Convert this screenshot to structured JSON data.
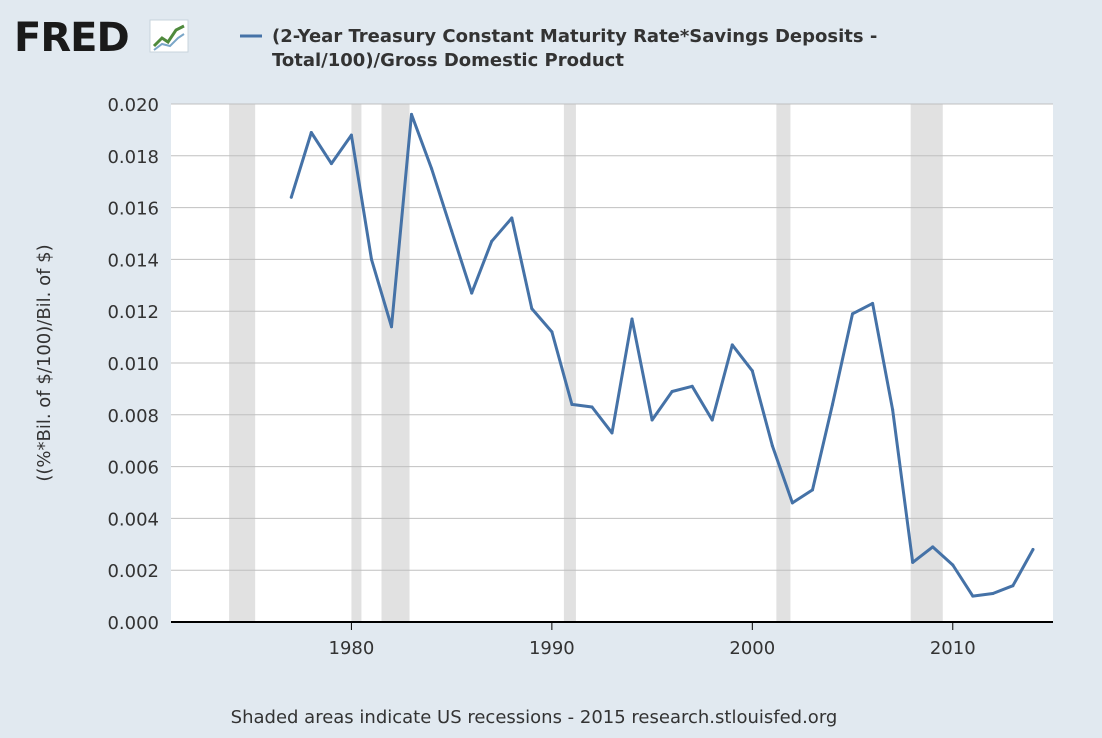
{
  "logo": {
    "text": "FRED"
  },
  "chart_data": {
    "type": "line",
    "title": "(2-Year Treasury Constant Maturity Rate*Savings Deposits - Total/100)/Gross Domestic Product",
    "title_lines": [
      "(2-Year Treasury Constant Maturity Rate*Savings Deposits -",
      "Total/100)/Gross Domestic Product"
    ],
    "ylabel": "((%*Bil. of $/100)/Bil. of $)",
    "xlabel": "",
    "ylim": [
      0,
      0.02
    ],
    "xlim": [
      1971,
      2015
    ],
    "yticks": [
      "0.000",
      "0.002",
      "0.004",
      "0.006",
      "0.008",
      "0.010",
      "0.012",
      "0.014",
      "0.016",
      "0.018",
      "0.020"
    ],
    "xticks": [
      1980,
      1990,
      2000,
      2010
    ],
    "grid": true,
    "legend_position": "top",
    "series_color": "#4572a7",
    "recession_color": "#e1e1e1",
    "recessions": [
      [
        1973.9,
        1975.2
      ],
      [
        1980.0,
        1980.5
      ],
      [
        1981.5,
        1982.9
      ],
      [
        1990.6,
        1991.2
      ],
      [
        2001.2,
        2001.9
      ],
      [
        2007.9,
        2009.5
      ]
    ],
    "series": [
      {
        "name": "(2-Year Treasury Constant Maturity Rate*Savings Deposits - Total/100)/Gross Domestic Product",
        "x": [
          1977,
          1978,
          1979,
          1980,
          1981,
          1982,
          1983,
          1984,
          1985,
          1986,
          1987,
          1988,
          1989,
          1990,
          1991,
          1992,
          1993,
          1994,
          1995,
          1996,
          1997,
          1998,
          1999,
          2000,
          2001,
          2002,
          2003,
          2004,
          2005,
          2006,
          2007,
          2008,
          2009,
          2010,
          2011,
          2012,
          2013,
          2014
        ],
        "values": [
          0.0164,
          0.0189,
          0.0177,
          0.0188,
          0.014,
          0.0114,
          0.0196,
          0.0175,
          0.0151,
          0.0127,
          0.0147,
          0.0156,
          0.0121,
          0.0112,
          0.0084,
          0.0083,
          0.0073,
          0.0117,
          0.0078,
          0.0089,
          0.0091,
          0.0078,
          0.0107,
          0.0097,
          0.0068,
          0.0046,
          0.0051,
          0.0084,
          0.0119,
          0.0123,
          0.0082,
          0.0023,
          0.0029,
          0.0022,
          0.001,
          0.0011,
          0.0014,
          0.0028
        ]
      }
    ]
  },
  "footer": {
    "text": "Shaded areas indicate US recessions - 2015 research.stlouisfed.org"
  }
}
